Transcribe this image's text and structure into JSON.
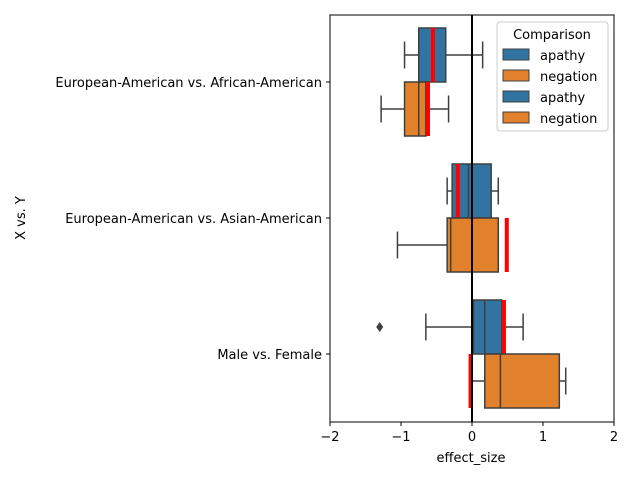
{
  "chart_data": {
    "type": "box",
    "orientation": "horizontal",
    "xlabel": "effect_size",
    "ylabel": "X vs. Y",
    "xlim": [
      -2,
      2
    ],
    "xticks": [
      -2,
      -1,
      0,
      1,
      2
    ],
    "xtick_labels": [
      "−2",
      "−1",
      "0",
      "1",
      "2"
    ],
    "categories": [
      "European-American vs. African-American",
      "European-American vs. Asian-American",
      "Male vs. Female"
    ],
    "zero_line": 0,
    "legend": {
      "title": "Comparison",
      "placement": "top-right",
      "entries": [
        {
          "label": "apathy",
          "color": "#3274a1"
        },
        {
          "label": "negation",
          "color": "#e1812c"
        },
        {
          "label": "apathy",
          "color": "#3274a1"
        },
        {
          "label": "negation",
          "color": "#e1812c"
        }
      ]
    },
    "series": [
      {
        "name": "apathy",
        "color": "#3274a1",
        "boxes": [
          {
            "whisker_low": -0.95,
            "q1": -0.75,
            "median": -0.55,
            "q3": -0.37,
            "whisker_high": 0.15,
            "outliers": [],
            "marker": -0.55
          },
          {
            "whisker_low": -0.35,
            "q1": -0.28,
            "median": -0.05,
            "q3": 0.27,
            "whisker_high": 0.37,
            "outliers": [],
            "marker": -0.2
          },
          {
            "whisker_low": -0.65,
            "q1": 0.02,
            "median": 0.18,
            "q3": 0.42,
            "whisker_high": 0.72,
            "outliers": [
              -1.3
            ],
            "marker": 0.45
          }
        ]
      },
      {
        "name": "negation",
        "color": "#e1812c",
        "boxes": [
          {
            "whisker_low": -1.28,
            "q1": -0.95,
            "median": -0.75,
            "q3": -0.65,
            "whisker_high": -0.33,
            "outliers": [],
            "marker": -0.62
          },
          {
            "whisker_low": -1.05,
            "q1": -0.35,
            "median": -0.3,
            "q3": 0.37,
            "whisker_high": 0.37,
            "outliers": [],
            "marker": 0.49
          },
          {
            "whisker_low": 0.0,
            "q1": 0.18,
            "median": 0.4,
            "q3": 1.23,
            "whisker_high": 1.32,
            "outliers": [],
            "marker": -0.02
          }
        ]
      }
    ],
    "marker_color": "#ff0000"
  }
}
